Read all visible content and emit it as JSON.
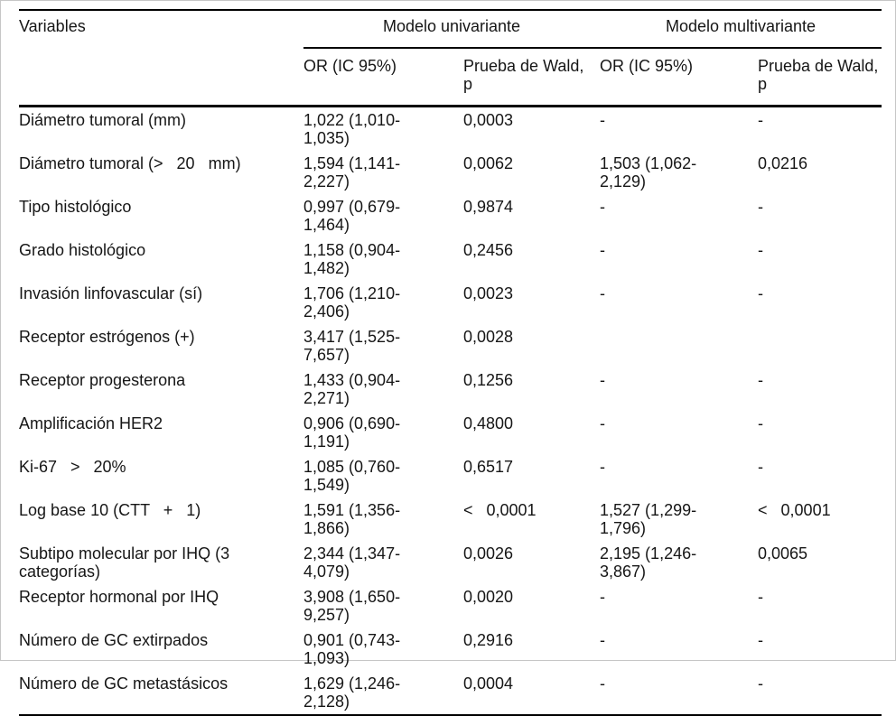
{
  "table": {
    "col_headers": {
      "variables": "Variables",
      "group_univariate": "Modelo univariante",
      "group_multivariate": "Modelo multivariante",
      "or_label": "OR (IC 95%)",
      "wald_label": "Prueba de Wald, p"
    },
    "rows": [
      {
        "variable": "Diámetro tumoral (mm)",
        "uni_or": "1,022 (1,010-1,035)",
        "uni_p": "0,0003",
        "multi_or": "-",
        "multi_p": "-"
      },
      {
        "variable": "Diámetro tumoral (>   20   mm)",
        "uni_or": "1,594 (1,141-2,227)",
        "uni_p": "0,0062",
        "multi_or": "1,503 (1,062-2,129)",
        "multi_p": "0,0216"
      },
      {
        "variable": "Tipo histológico",
        "uni_or": "0,997 (0,679-1,464)",
        "uni_p": "0,9874",
        "multi_or": "-",
        "multi_p": "-"
      },
      {
        "variable": "Grado histológico",
        "uni_or": "1,158 (0,904-1,482)",
        "uni_p": "0,2456",
        "multi_or": "-",
        "multi_p": "-"
      },
      {
        "variable": "Invasión linfovascular (sí)",
        "uni_or": "1,706 (1,210-2,406)",
        "uni_p": "0,0023",
        "multi_or": "-",
        "multi_p": "-"
      },
      {
        "variable": "Receptor estrógenos (+)",
        "uni_or": "3,417 (1,525-7,657)",
        "uni_p": "0,0028",
        "multi_or": "",
        "multi_p": ""
      },
      {
        "variable": "Receptor progesterona",
        "uni_or": "1,433 (0,904-2,271)",
        "uni_p": "0,1256",
        "multi_or": "-",
        "multi_p": "-"
      },
      {
        "variable": "Amplificación HER2",
        "uni_or": "0,906 (0,690-1,191)",
        "uni_p": "0,4800",
        "multi_or": "-",
        "multi_p": "-"
      },
      {
        "variable": "Ki-67   >   20%",
        "uni_or": "1,085 (0,760-1,549)",
        "uni_p": "0,6517",
        "multi_or": "-",
        "multi_p": "-"
      },
      {
        "variable": "Log base 10 (CTT   +   1)",
        "uni_or": "1,591 (1,356-1,866)",
        "uni_p": "<   0,0001",
        "multi_or": "1,527 (1,299-1,796)",
        "multi_p": "<   0,0001"
      },
      {
        "variable": "Subtipo molecular por IHQ (3 categorías)",
        "uni_or": "2,344 (1,347-4,079)",
        "uni_p": "0,0026",
        "multi_or": "2,195 (1,246-3,867)",
        "multi_p": "0,0065"
      },
      {
        "variable": "Receptor hormonal por IHQ",
        "uni_or": "3,908 (1,650-9,257)",
        "uni_p": "0,0020",
        "multi_or": "-",
        "multi_p": "-"
      },
      {
        "variable": "Número de GC extirpados",
        "uni_or": "0,901 (0,743-1,093)",
        "uni_p": "0,2916",
        "multi_or": "-",
        "multi_p": "-"
      },
      {
        "variable": "Número de GC metastásicos",
        "uni_or": "1,629 (1,246-2,128)",
        "uni_p": "0,0004",
        "multi_or": "-",
        "multi_p": "-"
      }
    ]
  }
}
